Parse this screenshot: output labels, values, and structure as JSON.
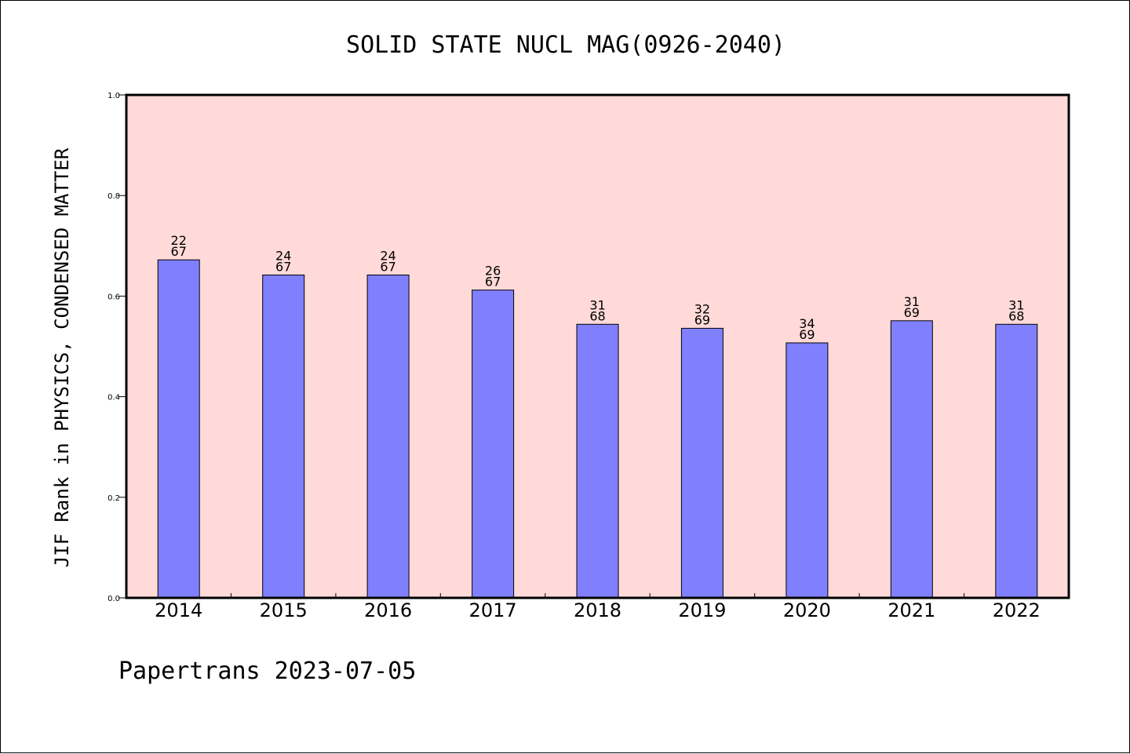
{
  "chart_data": {
    "type": "bar",
    "title": "SOLID STATE NUCL MAG(0926-2040)",
    "xlabel": "",
    "ylabel": "JIF Rank in PHYSICS, CONDENSED MATTER",
    "categories": [
      "2014",
      "2015",
      "2016",
      "2017",
      "2018",
      "2019",
      "2020",
      "2021",
      "2022"
    ],
    "values": [
      0.672,
      0.642,
      0.642,
      0.612,
      0.544,
      0.536,
      0.507,
      0.551,
      0.544
    ],
    "rank": [
      "22",
      "24",
      "24",
      "26",
      "31",
      "32",
      "34",
      "31",
      "31"
    ],
    "total": [
      "67",
      "67",
      "67",
      "67",
      "68",
      "69",
      "69",
      "69",
      "68"
    ],
    "ylim": [
      0,
      1.0
    ],
    "yticks": [
      "0.0",
      "0.2",
      "0.4",
      "0.6",
      "0.8",
      "1.0"
    ],
    "grid": false,
    "colors": {
      "plot_background": "#ffdad8",
      "bar_fill": "#8080ff",
      "bar_stroke": "#000000"
    }
  },
  "footer": {
    "text": "Papertrans 2023-07-05"
  }
}
